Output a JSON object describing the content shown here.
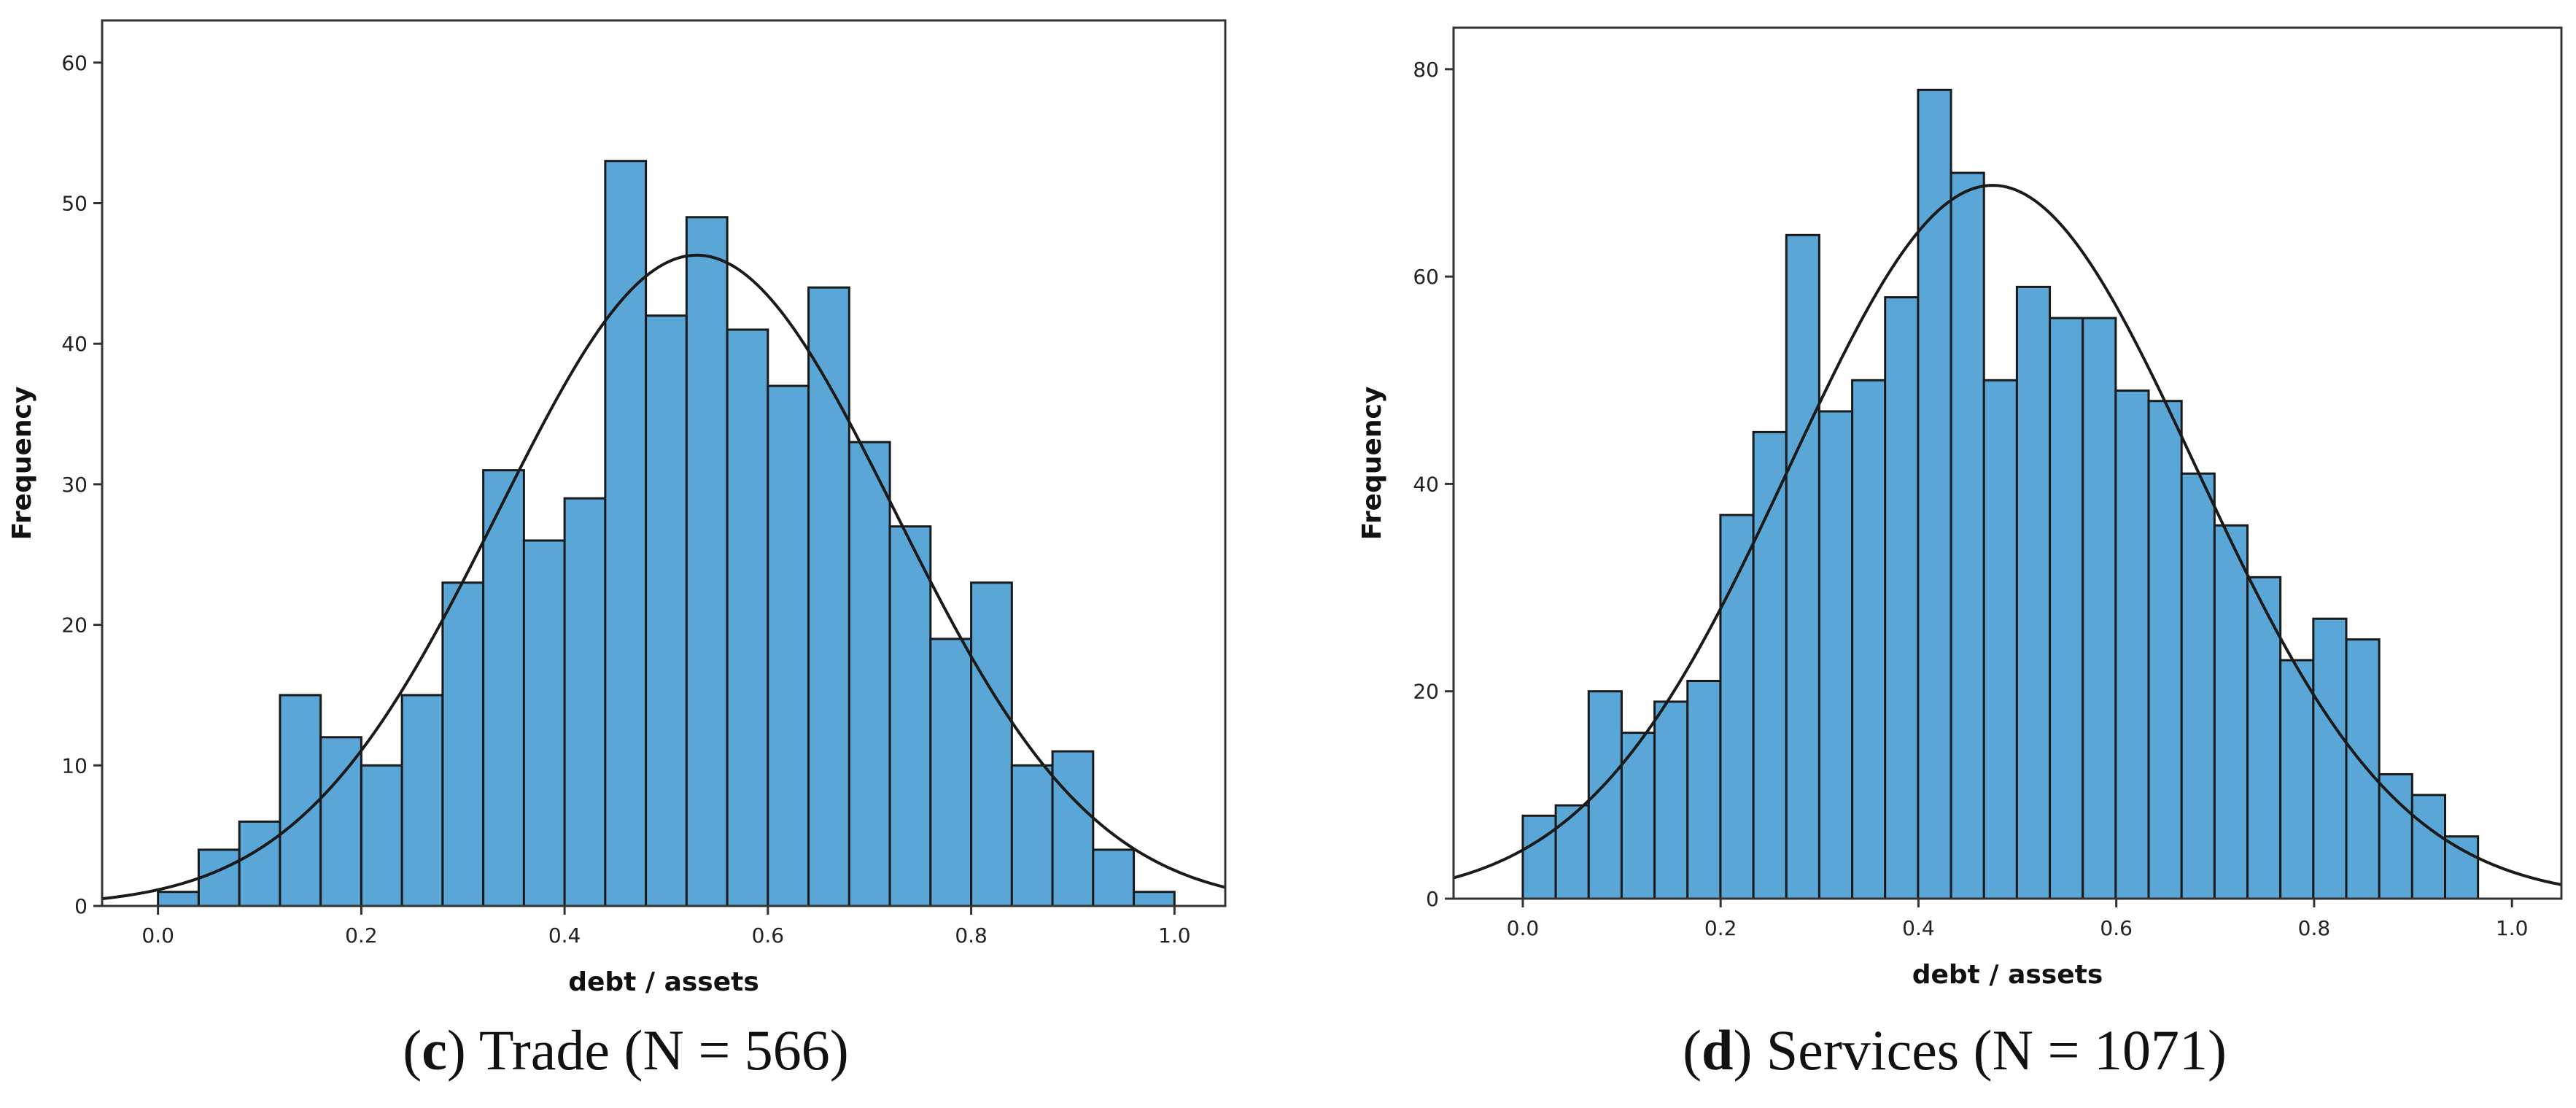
{
  "chart_data": [
    {
      "type": "bar",
      "panel_letter": "c",
      "panel_title": "Trade (N = 566)",
      "xlabel": "debt / assets",
      "ylabel": "Frequency",
      "xlim": [
        -0.055,
        1.05
      ],
      "ylim": [
        0,
        63
      ],
      "x_ticks": [
        0.0,
        0.2,
        0.4,
        0.6,
        0.8,
        1.0
      ],
      "x_tick_labels": [
        "0.0",
        "0.2",
        "0.4",
        "0.6",
        "0.8",
        "1.0"
      ],
      "y_ticks": [
        0,
        10,
        20,
        30,
        40,
        50,
        60
      ],
      "y_tick_labels": [
        "0",
        "10",
        "20",
        "30",
        "40",
        "50",
        "60"
      ],
      "bin_start": 0.0,
      "bin_width": 0.04,
      "values": [
        1,
        4,
        6,
        15,
        12,
        10,
        15,
        23,
        31,
        26,
        29,
        53,
        42,
        49,
        41,
        37,
        44,
        33,
        27,
        19,
        23,
        10,
        11,
        4,
        1
      ],
      "normal_curve": {
        "mean": 0.53,
        "sd": 0.195,
        "peak": 46.3
      },
      "bar_color": "#5aa6d6",
      "edge_color": "#1a1a1a"
    },
    {
      "type": "bar",
      "panel_letter": "d",
      "panel_title": "Services (N = 1071)",
      "xlabel": "debt / assets",
      "ylabel": "Frequency",
      "xlim": [
        -0.07,
        1.05
      ],
      "ylim": [
        0,
        84
      ],
      "x_ticks": [
        0.0,
        0.2,
        0.4,
        0.6,
        0.8,
        1.0
      ],
      "x_tick_labels": [
        "0.0",
        "0.2",
        "0.4",
        "0.6",
        "0.8",
        "1.0"
      ],
      "y_ticks": [
        0,
        20,
        40,
        60,
        80
      ],
      "y_tick_labels": [
        "0",
        "20",
        "40",
        "60",
        "80"
      ],
      "bin_start": 0.0,
      "bin_width": 0.0333,
      "values": [
        8,
        9,
        20,
        16,
        19,
        21,
        37,
        45,
        64,
        47,
        50,
        58,
        78,
        70,
        50,
        59,
        56,
        56,
        49,
        48,
        41,
        36,
        31,
        23,
        27,
        25,
        12,
        10,
        6
      ],
      "normal_curve": {
        "mean": 0.475,
        "sd": 0.205,
        "peak": 68.8
      },
      "bar_color": "#5aa6d6",
      "edge_color": "#1a1a1a"
    }
  ]
}
